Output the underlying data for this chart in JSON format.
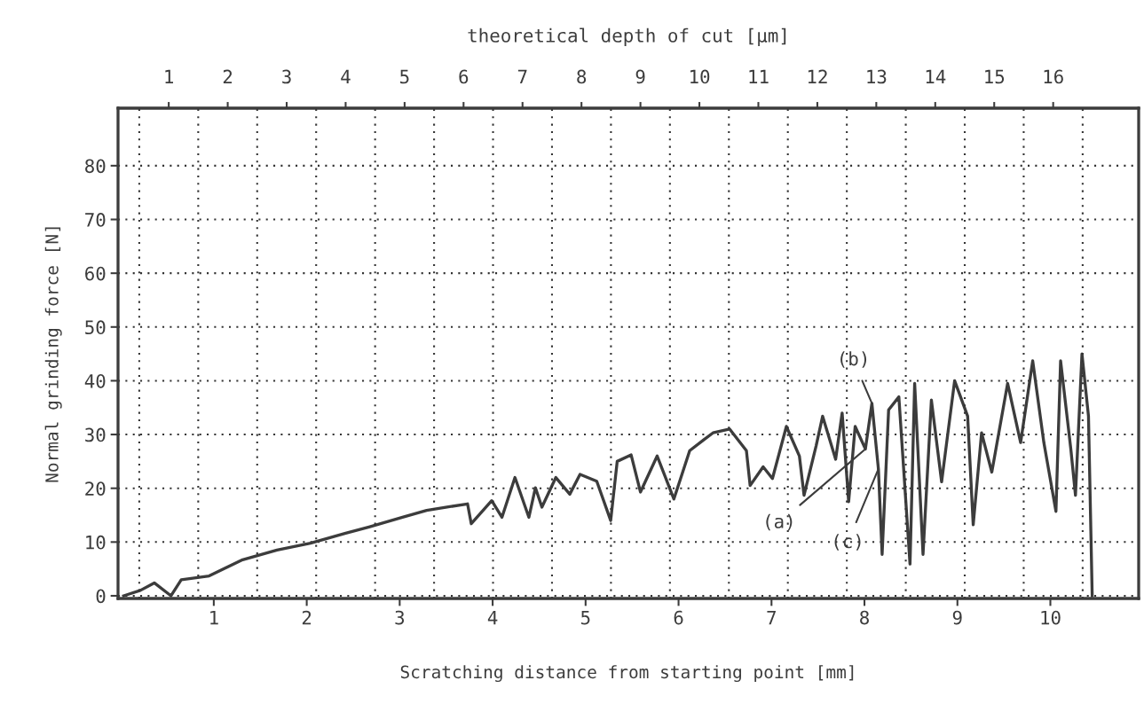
{
  "chart_data": {
    "type": "line",
    "x2label": "theoretical depth of cut [µm]",
    "xlabel": "Scratching distance from starting point [mm]",
    "ylabel": "Normal grinding force [N]",
    "x": [
      0.03,
      0.21,
      0.36,
      0.54,
      0.65,
      0.95,
      1.31,
      1.68,
      2.04,
      2.41,
      2.67,
      3.03,
      3.29,
      3.51,
      3.73,
      3.77,
      3.99,
      4.1,
      4.24,
      4.39,
      4.46,
      4.53,
      4.68,
      4.83,
      4.94,
      5.12,
      5.27,
      5.34,
      5.49,
      5.59,
      5.77,
      5.95,
      6.12,
      6.27,
      6.37,
      6.55,
      6.73,
      6.77,
      6.91,
      7.01,
      7.16,
      7.3,
      7.35,
      7.48,
      7.55,
      7.69,
      7.76,
      7.83,
      7.9,
      8.01,
      8.08,
      8.15,
      8.19,
      8.26,
      8.37,
      8.49,
      8.54,
      8.63,
      8.72,
      8.83,
      8.97,
      9.11,
      9.17,
      9.26,
      9.37,
      9.54,
      9.68,
      9.81,
      9.93,
      10.06,
      10.11,
      10.22,
      10.27,
      10.34,
      10.41,
      10.45
    ],
    "series": [
      {
        "color": "#3c3c3c",
        "values": [
          0,
          1,
          2.4,
          0,
          3,
          3.7,
          6.7,
          8.5,
          9.8,
          11.6,
          12.8,
          14.6,
          15.9,
          16.5,
          17.1,
          13.4,
          17.7,
          14.6,
          22,
          14.6,
          20.1,
          16.5,
          22,
          18.9,
          22.6,
          21.3,
          14,
          25,
          26.2,
          19.3,
          26,
          18,
          27,
          29,
          30.3,
          31,
          27,
          20.5,
          24,
          21.8,
          31.5,
          26,
          18.7,
          27.9,
          33.4,
          25.4,
          34,
          17.5,
          31.5,
          27.3,
          35.8,
          23.6,
          7.7,
          34.6,
          37,
          5.9,
          39.5,
          7.7,
          36.4,
          21.2,
          40,
          33.4,
          13.2,
          30.3,
          23,
          39.5,
          28.5,
          43.7,
          28.5,
          15.7,
          43.7,
          27.3,
          18.7,
          45,
          33.4,
          0
        ]
      }
    ],
    "xlim": [
      -0.03,
      10.95
    ],
    "xticks": [
      1,
      2,
      3,
      4,
      5,
      6,
      7,
      8,
      9,
      10
    ],
    "ylim": [
      -0.5,
      90.7
    ],
    "yticks": [
      0,
      10,
      20,
      30,
      40,
      50,
      60,
      70,
      80
    ],
    "x2lim": [
      0.14,
      17.45
    ],
    "x2ticks": [
      1,
      2,
      3,
      4,
      5,
      6,
      7,
      8,
      9,
      10,
      11,
      12,
      13,
      14,
      15,
      16,
      {
        "value": 0.5,
        "label": null
      },
      {
        "value": 1.5,
        "label": null
      },
      {
        "value": 2.5,
        "label": null
      },
      {
        "value": 3.5,
        "label": null
      },
      {
        "value": 4.5,
        "label": null
      },
      {
        "value": 5.5,
        "label": null
      },
      {
        "value": 6.5,
        "label": null
      },
      {
        "value": 7.5,
        "label": null
      },
      {
        "value": 8.5,
        "label": null
      },
      {
        "value": 9.5,
        "label": null
      },
      {
        "value": 10.5,
        "label": null
      },
      {
        "value": 11.5,
        "label": null
      },
      {
        "value": 12.5,
        "label": null
      },
      {
        "value": 13.5,
        "label": null
      },
      {
        "value": 14.5,
        "label": null
      },
      {
        "value": 15.5,
        "label": null
      },
      {
        "value": 16.5,
        "label": null
      }
    ],
    "grid": true,
    "line_style": "solid",
    "marker": "none",
    "legend": false,
    "annotations": [
      {
        "text": "(a)",
        "x": 8.01,
        "y": 27.3
      },
      {
        "text": "(b)",
        "x": 8.08,
        "y": 35.8
      },
      {
        "text": "(c)",
        "x": 8.15,
        "y": 23.6
      }
    ]
  }
}
